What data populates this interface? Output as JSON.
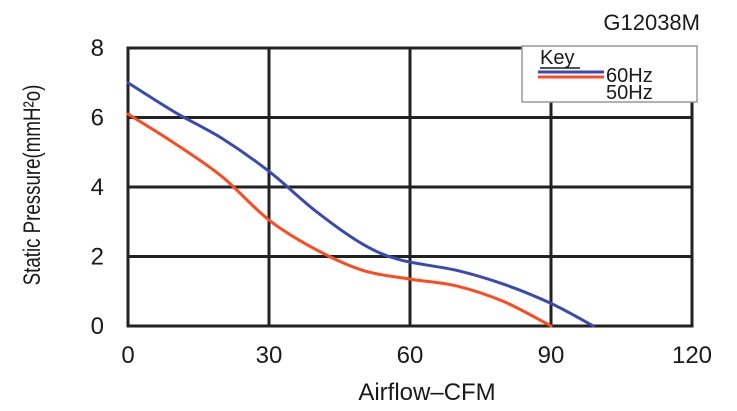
{
  "chart_data": {
    "type": "line",
    "title": "G12038M",
    "xlabel": "Airflow–CFM",
    "ylabel": "Static Pressure(mmH²o)",
    "xlim": [
      0,
      120
    ],
    "ylim": [
      0,
      8
    ],
    "xticks": [
      "0",
      "30",
      "60",
      "90",
      "120"
    ],
    "yticks": [
      "0",
      "2",
      "4",
      "6",
      "8"
    ],
    "grid": true,
    "legend": {
      "title": "Key",
      "position": "top-right",
      "entries": [
        "60Hz",
        "50Hz"
      ]
    },
    "series": [
      {
        "name": "60Hz",
        "color": "#3b4ab0",
        "points": [
          [
            0,
            7.0
          ],
          [
            10,
            6.15
          ],
          [
            20,
            5.4
          ],
          [
            30,
            4.45
          ],
          [
            40,
            3.3
          ],
          [
            50,
            2.35
          ],
          [
            58,
            1.9
          ],
          [
            70,
            1.6
          ],
          [
            80,
            1.2
          ],
          [
            90,
            0.65
          ],
          [
            99,
            0.0
          ]
        ]
      },
      {
        "name": "50Hz",
        "color": "#ff4a1f",
        "points": [
          [
            0,
            6.1
          ],
          [
            10,
            5.25
          ],
          [
            20,
            4.3
          ],
          [
            30,
            3.05
          ],
          [
            40,
            2.2
          ],
          [
            50,
            1.6
          ],
          [
            60,
            1.35
          ],
          [
            70,
            1.15
          ],
          [
            80,
            0.7
          ],
          [
            90,
            0.0
          ]
        ]
      }
    ]
  }
}
